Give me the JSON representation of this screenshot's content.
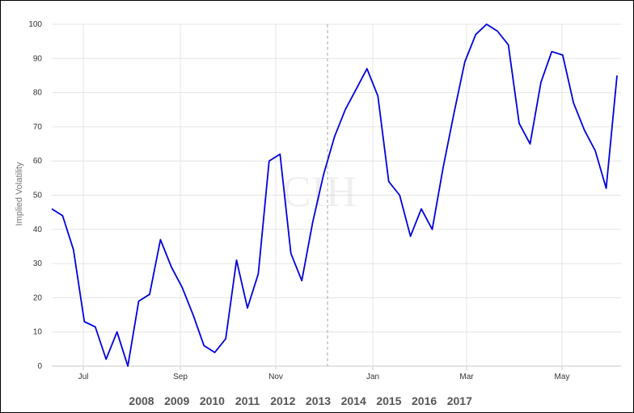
{
  "chart_data": {
    "type": "line",
    "ylabel": "Implied Volatility",
    "xlabel": "",
    "ylim": [
      0,
      100
    ],
    "yticks": [
      0,
      10,
      20,
      30,
      40,
      50,
      60,
      70,
      80,
      90,
      100
    ],
    "x_ticks": [
      "Jul",
      "Sep",
      "Nov",
      "Jan",
      "Mar",
      "May"
    ],
    "year_labels": [
      "2008",
      "2009",
      "2010",
      "2011",
      "2012",
      "2013",
      "2014",
      "2015",
      "2016",
      "2017"
    ],
    "watermark": "CIH",
    "line_color": "#0000dd",
    "grid": true,
    "series": [
      {
        "values": [
          46,
          44,
          34,
          13,
          11.5,
          2,
          10,
          0,
          19,
          21,
          37,
          29,
          23,
          15,
          6,
          4,
          8,
          31,
          17,
          27,
          60,
          62,
          33,
          25,
          42,
          56,
          67,
          75,
          81,
          87,
          79,
          54,
          50,
          38,
          46,
          40,
          58,
          74,
          89,
          97,
          100,
          98,
          94,
          71,
          65,
          83,
          92,
          91,
          77,
          69,
          63,
          52,
          85
        ]
      }
    ]
  }
}
